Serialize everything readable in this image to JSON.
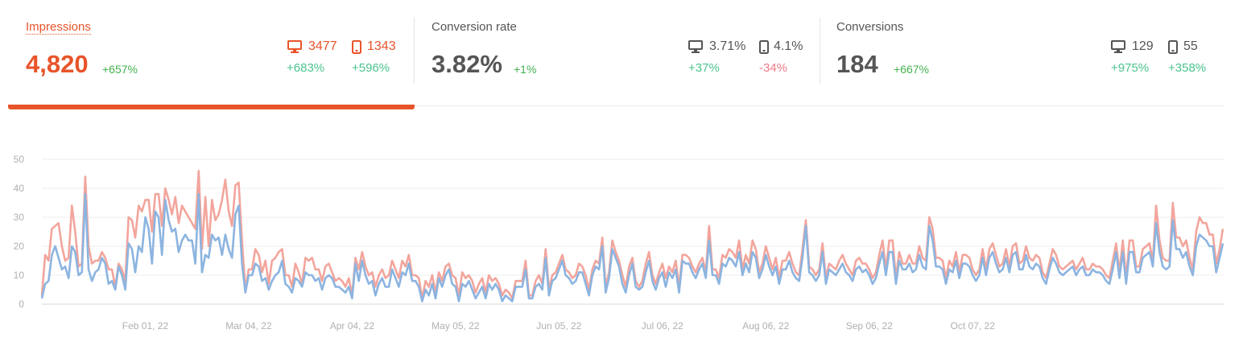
{
  "metrics": [
    {
      "title": "Impressions",
      "value": "4,820",
      "change": "+657%",
      "desktop": {
        "value": "3477",
        "change": "+683%"
      },
      "mobile": {
        "value": "1343",
        "change": "+596%"
      },
      "active": true
    },
    {
      "title": "Conversion rate",
      "value": "3.82%",
      "change": "+1%",
      "desktop": {
        "value": "3.71%",
        "change": "+37%"
      },
      "mobile": {
        "value": "4.1%",
        "change": "-34%"
      },
      "active": false
    },
    {
      "title": "Conversions",
      "value": "184",
      "change": "+667%",
      "desktop": {
        "value": "129",
        "change": "+975%"
      },
      "mobile": {
        "value": "55",
        "change": "+358%"
      },
      "active": false
    }
  ],
  "icons": {
    "desktop": "desktop-icon",
    "mobile": "mobile-icon"
  },
  "colors": {
    "accent": "#e8542a",
    "positive": "#43b14e",
    "positive_light": "#4cc48e",
    "negative": "#f07a86",
    "series_total": "#f2a59c",
    "series_desktop": "#8cb4e0"
  },
  "chart_data": {
    "type": "line",
    "title": "",
    "xlabel": "",
    "ylabel": "",
    "ylim": [
      0,
      50
    ],
    "yticks": [
      0,
      10,
      20,
      30,
      40,
      50
    ],
    "x_start": "2022-01-01",
    "x_tick_labels": [
      "Feb 01, 22",
      "Mar 04, 22",
      "Apr 04, 22",
      "May 05, 22",
      "Jun 05, 22",
      "Jul 06, 22",
      "Aug 06, 22",
      "Sep 06, 22",
      "Oct 07, 22"
    ],
    "x_tick_dates": [
      "2022-02-01",
      "2022-03-04",
      "2022-04-04",
      "2022-05-05",
      "2022-06-05",
      "2022-07-06",
      "2022-08-06",
      "2022-09-06",
      "2022-10-07"
    ],
    "grid": true,
    "series": [
      {
        "values": [
          3,
          17,
          15,
          26,
          27,
          28,
          20,
          15,
          16,
          34,
          25,
          13,
          14,
          44,
          20,
          14,
          15,
          15,
          18,
          16,
          12,
          12,
          6,
          14,
          12,
          8,
          30,
          29,
          23,
          34,
          32,
          36,
          36,
          25,
          38,
          38,
          27,
          40,
          36,
          31,
          37,
          28,
          34,
          32,
          30,
          28,
          26,
          46,
          19,
          37,
          20,
          36,
          29,
          31,
          36,
          43,
          32,
          27,
          41,
          42,
          22,
          5,
          12,
          12,
          19,
          17,
          11,
          15,
          7,
          15,
          16,
          18,
          19,
          10,
          10,
          6,
          14,
          11,
          7,
          16,
          15,
          16,
          12,
          12,
          8,
          13,
          14,
          11,
          8,
          9,
          8,
          6,
          9,
          3,
          16,
          12,
          18,
          13,
          10,
          11,
          6,
          10,
          12,
          9,
          10,
          15,
          12,
          9,
          15,
          13,
          17,
          10,
          10,
          9,
          2,
          8,
          6,
          10,
          4,
          11,
          8,
          13,
          14,
          10,
          9,
          3,
          11,
          9,
          10,
          8,
          4,
          7,
          9,
          4,
          10,
          8,
          9,
          7,
          3,
          5,
          4,
          2,
          8,
          8,
          8,
          15,
          3,
          3,
          8,
          10,
          7,
          19,
          5,
          10,
          11,
          14,
          17,
          12,
          11,
          9,
          10,
          14,
          13,
          10,
          5,
          12,
          15,
          14,
          23,
          6,
          11,
          22,
          18,
          15,
          10,
          6,
          13,
          16,
          8,
          6,
          8,
          14,
          18,
          10,
          7,
          11,
          14,
          9,
          13,
          11,
          15,
          6,
          17,
          17,
          16,
          13,
          11,
          14,
          16,
          11,
          27,
          12,
          12,
          9,
          17,
          16,
          19,
          18,
          16,
          22,
          12,
          17,
          14,
          22,
          19,
          11,
          14,
          20,
          16,
          12,
          16,
          9,
          15,
          15,
          18,
          14,
          11,
          10,
          19,
          29,
          13,
          12,
          10,
          12,
          21,
          9,
          14,
          13,
          12,
          15,
          17,
          14,
          12,
          10,
          15,
          16,
          14,
          14,
          12,
          9,
          11,
          17,
          22,
          12,
          22,
          22,
          9,
          18,
          14,
          14,
          17,
          14,
          14,
          20,
          16,
          15,
          30,
          26,
          16,
          16,
          15,
          9,
          15,
          13,
          18,
          11,
          17,
          17,
          16,
          12,
          10,
          12,
          19,
          12,
          19,
          21,
          17,
          13,
          14,
          19,
          13,
          20,
          21,
          14,
          15,
          20,
          16,
          15,
          17,
          16,
          11,
          9,
          14,
          19,
          17,
          13,
          12,
          13,
          14,
          15,
          12,
          14,
          16,
          12,
          12,
          14,
          13,
          13,
          12,
          10,
          9,
          15,
          21,
          11,
          22,
          9,
          22,
          22,
          13,
          13,
          19,
          20,
          21,
          15,
          34,
          22,
          16,
          15,
          15,
          35,
          23,
          23,
          20,
          22,
          16,
          12,
          25,
          30,
          28,
          28,
          24,
          24,
          14,
          19,
          26
        ]
      },
      {
        "values": [
          2,
          7,
          8,
          17,
          20,
          16,
          12,
          13,
          9,
          20,
          18,
          10,
          11,
          38,
          12,
          8,
          11,
          12,
          16,
          14,
          7,
          8,
          5,
          13,
          10,
          5,
          21,
          19,
          11,
          20,
          18,
          30,
          26,
          14,
          32,
          30,
          17,
          36,
          29,
          25,
          26,
          18,
          22,
          24,
          22,
          22,
          14,
          38,
          11,
          17,
          16,
          24,
          22,
          23,
          17,
          24,
          19,
          16,
          31,
          34,
          14,
          4,
          10,
          10,
          14,
          13,
          8,
          9,
          5,
          8,
          10,
          11,
          15,
          7,
          6,
          4,
          9,
          8,
          6,
          11,
          10,
          10,
          8,
          9,
          5,
          9,
          10,
          9,
          6,
          6,
          5,
          4,
          6,
          2,
          14,
          8,
          15,
          10,
          7,
          8,
          3,
          7,
          9,
          6,
          6,
          12,
          9,
          6,
          11,
          10,
          14,
          8,
          8,
          6,
          1,
          5,
          3,
          7,
          2,
          9,
          6,
          10,
          12,
          7,
          6,
          1,
          7,
          6,
          8,
          5,
          2,
          4,
          6,
          2,
          7,
          5,
          7,
          5,
          1,
          3,
          2,
          1,
          6,
          6,
          6,
          12,
          2,
          2,
          6,
          7,
          5,
          16,
          3,
          8,
          9,
          12,
          15,
          10,
          9,
          7,
          8,
          11,
          11,
          7,
          3,
          10,
          13,
          12,
          20,
          4,
          9,
          19,
          16,
          13,
          7,
          4,
          10,
          14,
          6,
          5,
          6,
          11,
          15,
          8,
          5,
          9,
          11,
          6,
          11,
          9,
          12,
          4,
          15,
          14,
          14,
          11,
          9,
          12,
          14,
          9,
          22,
          10,
          10,
          7,
          14,
          13,
          16,
          15,
          13,
          18,
          10,
          14,
          11,
          18,
          16,
          9,
          12,
          17,
          13,
          10,
          13,
          7,
          12,
          12,
          15,
          11,
          9,
          8,
          16,
          27,
          11,
          10,
          8,
          10,
          18,
          7,
          12,
          11,
          10,
          12,
          14,
          11,
          10,
          8,
          12,
          13,
          11,
          12,
          10,
          7,
          9,
          14,
          18,
          10,
          18,
          18,
          7,
          15,
          12,
          12,
          14,
          11,
          12,
          17,
          13,
          12,
          27,
          22,
          13,
          13,
          12,
          7,
          12,
          11,
          15,
          9,
          14,
          14,
          13,
          10,
          8,
          10,
          16,
          10,
          16,
          18,
          14,
          11,
          12,
          16,
          11,
          17,
          18,
          12,
          12,
          17,
          13,
          12,
          14,
          13,
          9,
          7,
          12,
          16,
          14,
          11,
          10,
          11,
          12,
          13,
          10,
          12,
          13,
          10,
          10,
          12,
          11,
          11,
          10,
          8,
          7,
          12,
          18,
          9,
          18,
          7,
          18,
          18,
          11,
          11,
          16,
          17,
          18,
          13,
          28,
          18,
          13,
          12,
          13,
          29,
          19,
          19,
          16,
          18,
          13,
          10,
          20,
          24,
          23,
          22,
          20,
          20,
          11,
          16,
          21
        ]
      }
    ]
  }
}
